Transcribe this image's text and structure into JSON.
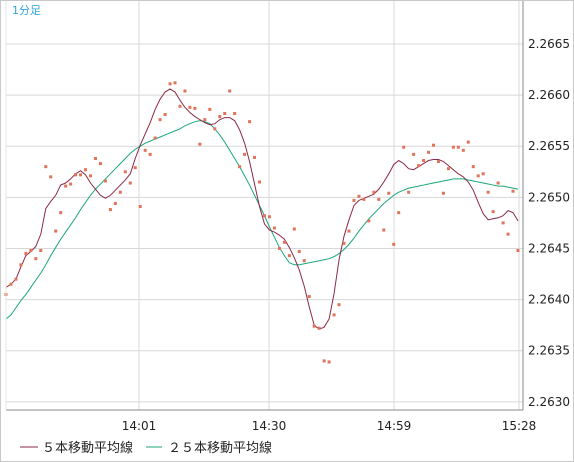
{
  "timeframe_label": "1分足",
  "colors": {
    "ma5": "#8b2a45",
    "ma25": "#1aa67a",
    "points": "#e0735a",
    "grid": "#d8d8d8",
    "axis": "#8a8a8a"
  },
  "chart_data": {
    "type": "line",
    "x_ticks": [
      "14:01",
      "14:30",
      "14:59",
      "15:28"
    ],
    "y_ticks": [
      "2.2665",
      "2.2660",
      "2.2655",
      "2.2650",
      "2.2645",
      "2.2640",
      "2.2635",
      "2.2630"
    ],
    "ylim": [
      2.26292,
      2.26693
    ],
    "grid": true,
    "legend": "bottom-left",
    "legend_entries": [
      "５本移動平均線",
      "２５本移動平均線"
    ],
    "series": [
      {
        "name": "５本移動平均線",
        "values": [
          2.26412,
          2.26415,
          2.2642,
          2.26432,
          2.26443,
          2.26447,
          2.26452,
          2.26464,
          2.26489,
          2.26496,
          2.26502,
          2.26512,
          2.26514,
          2.26518,
          2.26523,
          2.26526,
          2.26522,
          2.26514,
          2.26508,
          2.26502,
          2.26499,
          2.26502,
          2.26507,
          2.26512,
          2.26517,
          2.26523,
          2.26538,
          2.26551,
          2.26562,
          2.26573,
          2.26586,
          2.26596,
          2.26603,
          2.26606,
          2.26603,
          2.26595,
          2.26588,
          2.26583,
          2.26579,
          2.26576,
          2.26573,
          2.26571,
          2.26572,
          2.26576,
          2.26578,
          2.26578,
          2.26575,
          2.26566,
          2.26553,
          2.26535,
          2.26513,
          2.26491,
          2.26474,
          2.26468,
          2.26466,
          2.26463,
          2.26459,
          2.26451,
          2.26441,
          2.26429,
          2.26413,
          2.26393,
          2.26375,
          2.26371,
          2.26373,
          2.26381,
          2.26406,
          2.26439,
          2.26462,
          2.26478,
          2.26492,
          2.26497,
          2.26499,
          2.26501,
          2.26503,
          2.26508,
          2.26515,
          2.26523,
          2.26532,
          2.26536,
          2.26533,
          2.26528,
          2.26527,
          2.2653,
          2.26533,
          2.26536,
          2.26537,
          2.26537,
          2.26535,
          2.26531,
          2.26527,
          2.26523,
          2.2652,
          2.26515,
          2.26507,
          2.26495,
          2.26484,
          2.26478,
          2.26479,
          2.2648,
          2.26482,
          2.26487,
          2.26485,
          2.26477
        ]
      },
      {
        "name": "２５本移動平均線",
        "values": [
          2.26381,
          2.26385,
          2.26392,
          2.26399,
          2.26405,
          2.26412,
          2.26419,
          2.26426,
          2.26434,
          2.26443,
          2.26451,
          2.26459,
          2.26466,
          2.26473,
          2.2648,
          2.26488,
          2.26495,
          2.26502,
          2.26508,
          2.26513,
          2.26518,
          2.26523,
          2.26528,
          2.26533,
          2.26538,
          2.26543,
          2.26547,
          2.2655,
          2.26553,
          2.26555,
          2.26557,
          2.26559,
          2.26561,
          2.26563,
          2.26565,
          2.26567,
          2.2657,
          2.26572,
          2.26574,
          2.26575,
          2.26574,
          2.26572,
          2.26567,
          2.26561,
          2.26554,
          2.26546,
          2.26538,
          2.2653,
          2.26521,
          2.26512,
          2.26502,
          2.26492,
          2.26482,
          2.26471,
          2.26461,
          2.26451,
          2.26443,
          2.26436,
          2.26434,
          2.26434,
          2.26435,
          2.26436,
          2.26437,
          2.26438,
          2.26439,
          2.2644,
          2.26442,
          2.26445,
          2.26449,
          2.26454,
          2.2646,
          2.26467,
          2.26473,
          2.26479,
          2.26484,
          2.26489,
          2.26494,
          2.26498,
          2.26502,
          2.26505,
          2.26507,
          2.26509,
          2.2651,
          2.26511,
          2.26512,
          2.26513,
          2.26514,
          2.26515,
          2.26516,
          2.26517,
          2.26518,
          2.26518,
          2.26518,
          2.26517,
          2.26516,
          2.26515,
          2.26514,
          2.26513,
          2.26512,
          2.26511,
          2.26511,
          2.2651,
          2.26509,
          2.26508
        ]
      },
      {
        "name": "",
        "type": "scatter",
        "values": [
          2.26405,
          2.26415,
          2.2642,
          2.26434,
          2.26445,
          2.26448,
          2.2644,
          2.26448,
          2.2653,
          2.2652,
          2.26467,
          2.26485,
          2.26511,
          2.26513,
          2.26522,
          2.26522,
          2.26527,
          2.26521,
          2.26538,
          2.26533,
          2.26516,
          2.26488,
          2.26494,
          2.26505,
          2.26525,
          2.26514,
          2.26529,
          2.26491,
          2.26546,
          2.26542,
          2.26558,
          2.26576,
          2.26581,
          2.26611,
          2.26612,
          2.26589,
          2.26604,
          2.26588,
          2.26587,
          2.26552,
          2.26576,
          2.26586,
          2.26567,
          2.26579,
          2.26582,
          2.26604,
          2.26582,
          2.2653,
          2.26542,
          2.26574,
          2.26539,
          2.26515,
          2.26482,
          2.26481,
          2.2647,
          2.2645,
          2.26456,
          2.26443,
          2.26469,
          2.26447,
          2.26438,
          2.26403,
          2.26374,
          2.26372,
          2.2634,
          2.26339,
          2.26385,
          2.26395,
          2.26455,
          2.26467,
          2.26497,
          2.26501,
          2.26498,
          2.26477,
          2.26505,
          2.26498,
          2.26468,
          2.26504,
          2.26454,
          2.26485,
          2.26549,
          2.26505,
          2.26542,
          2.26531,
          2.26536,
          2.26544,
          2.26551,
          2.26535,
          2.26504,
          2.26528,
          2.26549,
          2.26549,
          2.26546,
          2.26554,
          2.2653,
          2.26521,
          2.26523,
          2.26505,
          2.26486,
          2.26514,
          2.26475,
          2.26464,
          2.26506,
          2.26448
        ]
      }
    ]
  }
}
